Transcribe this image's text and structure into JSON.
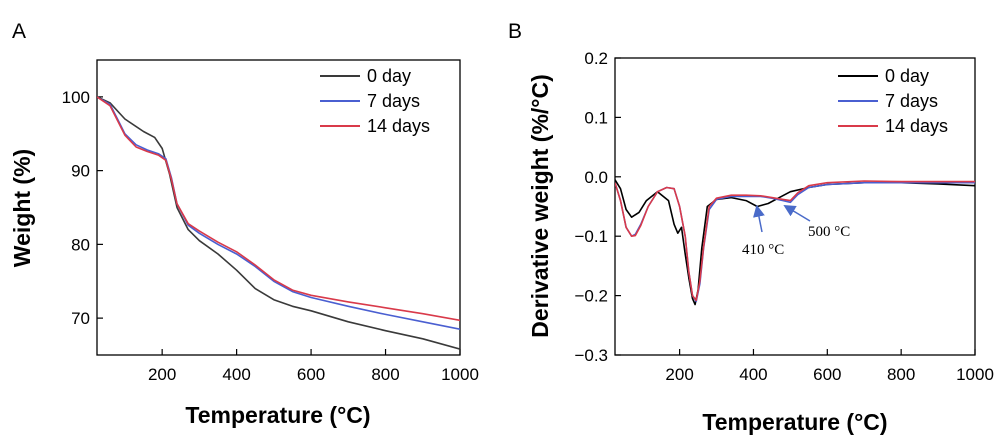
{
  "chart_data": [
    {
      "panel_label": "A",
      "type": "line",
      "xlabel": "Temperature (°C)",
      "ylabel": "Weight (%)",
      "xlim": [
        25,
        1000
      ],
      "ylim": [
        65,
        105
      ],
      "xticks": [
        200,
        400,
        600,
        800,
        1000
      ],
      "yticks": [
        70,
        80,
        90,
        100
      ],
      "legend_position": "top-right",
      "series": [
        {
          "name": "0 day",
          "color": "#3a3a3a",
          "x": [
            25,
            60,
            100,
            150,
            180,
            200,
            220,
            240,
            270,
            300,
            350,
            400,
            450,
            500,
            550,
            600,
            700,
            800,
            900,
            1000
          ],
          "y": [
            100,
            99.2,
            97,
            95.3,
            94.5,
            93,
            89.5,
            85,
            82,
            80.5,
            78.7,
            76.5,
            74,
            72.5,
            71.6,
            71,
            69.5,
            68.3,
            67.2,
            65.8
          ]
        },
        {
          "name": "7 days",
          "color": "#4a5fd1",
          "x": [
            25,
            60,
            80,
            100,
            130,
            160,
            190,
            210,
            225,
            240,
            270,
            300,
            350,
            400,
            450,
            500,
            550,
            600,
            700,
            800,
            900,
            1000
          ],
          "y": [
            100,
            99,
            97,
            95,
            93.5,
            92.8,
            92.3,
            91.6,
            89,
            85.5,
            82.6,
            81.5,
            80,
            78.7,
            77,
            75,
            73.6,
            72.8,
            71.6,
            70.5,
            69.5,
            68.5
          ]
        },
        {
          "name": "14 days",
          "color": "#d93a4a",
          "x": [
            25,
            60,
            80,
            100,
            130,
            160,
            190,
            210,
            225,
            240,
            270,
            300,
            350,
            400,
            450,
            500,
            550,
            600,
            700,
            800,
            900,
            1000
          ],
          "y": [
            100,
            98.8,
            96.8,
            94.8,
            93.2,
            92.6,
            92.1,
            91.4,
            88.8,
            85.5,
            82.8,
            81.8,
            80.3,
            79,
            77.2,
            75.2,
            73.8,
            73.1,
            72.2,
            71.4,
            70.6,
            69.7
          ]
        }
      ]
    },
    {
      "panel_label": "B",
      "type": "line",
      "xlabel": "Temperature (°C)",
      "ylabel": "Derivative weight (%/°C)",
      "xlim": [
        25,
        1000
      ],
      "ylim": [
        -0.3,
        0.2
      ],
      "xticks": [
        200,
        400,
        600,
        800,
        1000
      ],
      "yticks": [
        0.2,
        0.1,
        0.0,
        -0.1,
        -0.2,
        -0.3
      ],
      "ytick_labels": [
        "0.2",
        "0.1",
        "0.0",
        "−0.1",
        "−0.2",
        "−0.3"
      ],
      "legend_position": "top-right",
      "series": [
        {
          "name": "0 day",
          "color": "#000000",
          "x": [
            25,
            40,
            55,
            70,
            90,
            110,
            140,
            170,
            185,
            195,
            205,
            215,
            225,
            235,
            242,
            250,
            260,
            275,
            300,
            340,
            380,
            410,
            440,
            470,
            500,
            550,
            600,
            700,
            800,
            900,
            1000
          ],
          "y": [
            -0.005,
            -0.02,
            -0.055,
            -0.068,
            -0.06,
            -0.04,
            -0.025,
            -0.04,
            -0.08,
            -0.095,
            -0.085,
            -0.13,
            -0.17,
            -0.205,
            -0.215,
            -0.19,
            -0.12,
            -0.05,
            -0.038,
            -0.035,
            -0.04,
            -0.05,
            -0.045,
            -0.035,
            -0.025,
            -0.018,
            -0.013,
            -0.01,
            -0.01,
            -0.012,
            -0.015
          ]
        },
        {
          "name": "7 days",
          "color": "#4a5fd1",
          "x": [
            25,
            40,
            55,
            70,
            80,
            95,
            115,
            140,
            165,
            185,
            200,
            215,
            225,
            235,
            245,
            255,
            265,
            280,
            300,
            340,
            380,
            420,
            450,
            480,
            500,
            520,
            550,
            600,
            700,
            800,
            900,
            1000
          ],
          "y": [
            -0.01,
            -0.04,
            -0.085,
            -0.1,
            -0.097,
            -0.08,
            -0.05,
            -0.025,
            -0.018,
            -0.02,
            -0.05,
            -0.1,
            -0.16,
            -0.2,
            -0.21,
            -0.18,
            -0.12,
            -0.055,
            -0.038,
            -0.033,
            -0.033,
            -0.033,
            -0.036,
            -0.04,
            -0.043,
            -0.03,
            -0.018,
            -0.013,
            -0.01,
            -0.01,
            -0.01,
            -0.01
          ]
        },
        {
          "name": "14 days",
          "color": "#d93a4a",
          "x": [
            25,
            40,
            55,
            70,
            80,
            95,
            115,
            140,
            165,
            185,
            200,
            215,
            225,
            235,
            245,
            255,
            265,
            280,
            300,
            340,
            380,
            420,
            450,
            480,
            500,
            520,
            550,
            600,
            700,
            800,
            900,
            1000
          ],
          "y": [
            -0.01,
            -0.04,
            -0.085,
            -0.1,
            -0.099,
            -0.082,
            -0.05,
            -0.025,
            -0.018,
            -0.02,
            -0.05,
            -0.1,
            -0.16,
            -0.2,
            -0.208,
            -0.175,
            -0.118,
            -0.05,
            -0.036,
            -0.031,
            -0.031,
            -0.032,
            -0.035,
            -0.038,
            -0.04,
            -0.027,
            -0.015,
            -0.01,
            -0.007,
            -0.008,
            -0.008,
            -0.008
          ]
        }
      ],
      "annotations": [
        {
          "text": "410 °C",
          "arrow_to": [
            410,
            -0.047
          ]
        },
        {
          "text": "500 °C",
          "arrow_to": [
            488,
            -0.045
          ]
        }
      ]
    }
  ]
}
